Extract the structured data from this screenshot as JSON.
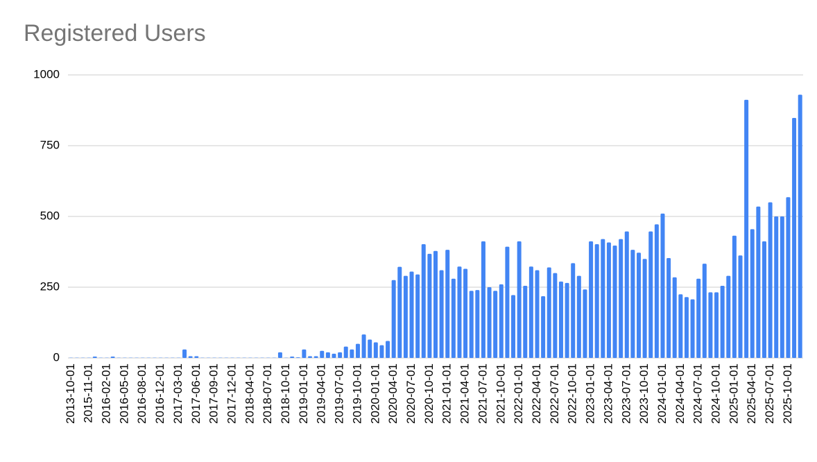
{
  "chart_data": {
    "type": "bar",
    "title": "Registered Users",
    "categories": [
      "2013-10-01",
      null,
      null,
      "2015-11-01",
      null,
      null,
      "2016-02-01",
      null,
      null,
      "2016-05-01",
      null,
      null,
      "2016-08-01",
      null,
      null,
      "2016-12-01",
      null,
      null,
      "2017-03-01",
      null,
      null,
      "2017-06-01",
      null,
      null,
      "2017-09-01",
      null,
      null,
      "2017-12-01",
      null,
      null,
      "2018-04-01",
      null,
      null,
      "2018-07-01",
      null,
      null,
      "2018-10-01",
      null,
      null,
      "2019-01-01",
      null,
      null,
      "2019-04-01",
      null,
      null,
      "2019-07-01",
      null,
      null,
      "2019-10-01",
      null,
      null,
      "2020-01-01",
      null,
      null,
      "2020-04-01",
      null,
      null,
      "2020-07-01",
      null,
      null,
      "2020-10-01",
      null,
      null,
      "2021-01-01",
      null,
      null,
      "2021-04-01",
      null,
      null,
      "2021-07-01",
      null,
      null,
      "2021-10-01",
      null,
      null,
      "2022-01-01",
      null,
      null,
      "2022-04-01",
      null,
      null,
      "2022-07-01",
      null,
      null,
      "2022-10-01",
      null,
      null,
      "2023-01-01",
      null,
      null,
      "2023-04-01",
      null,
      null,
      "2023-07-01",
      null,
      null,
      "2023-10-01",
      null,
      null,
      "2024-01-01",
      null,
      null,
      "2024-04-01",
      null,
      null,
      "2024-07-01",
      null,
      null,
      "2024-10-01",
      null,
      null,
      "2025-01-01",
      null,
      null,
      "2025-04-01",
      null,
      null,
      "2025-07-01",
      null,
      null,
      "2025-10-01",
      null,
      null
    ],
    "values": [
      1,
      1,
      1,
      1,
      5,
      1,
      1,
      5,
      1,
      1,
      1,
      1,
      1,
      1,
      1,
      1,
      1,
      1,
      1,
      30,
      6,
      6,
      1,
      1,
      1,
      1,
      1,
      1,
      1,
      1,
      1,
      1,
      1,
      1,
      1,
      20,
      1,
      5,
      2,
      30,
      6,
      6,
      25,
      20,
      15,
      20,
      40,
      30,
      50,
      83,
      65,
      55,
      45,
      60,
      275,
      322,
      290,
      305,
      295,
      402,
      368,
      378,
      310,
      382,
      280,
      323,
      315,
      237,
      240,
      412,
      250,
      237,
      260,
      393,
      222,
      412,
      255,
      323,
      310,
      218,
      320,
      300,
      270,
      265,
      335,
      290,
      242,
      412,
      402,
      420,
      408,
      397,
      420,
      447,
      382,
      372,
      350,
      447,
      472,
      510,
      353,
      285,
      225,
      215,
      207,
      280,
      333,
      232,
      232,
      255,
      290,
      432,
      362,
      912,
      455,
      535,
      412,
      550,
      500,
      500,
      568,
      848,
      930
    ],
    "color": "#4285f4",
    "ylim": [
      0,
      1000
    ],
    "yticks": [
      0,
      250,
      500,
      750,
      1000
    ],
    "grid": true
  }
}
